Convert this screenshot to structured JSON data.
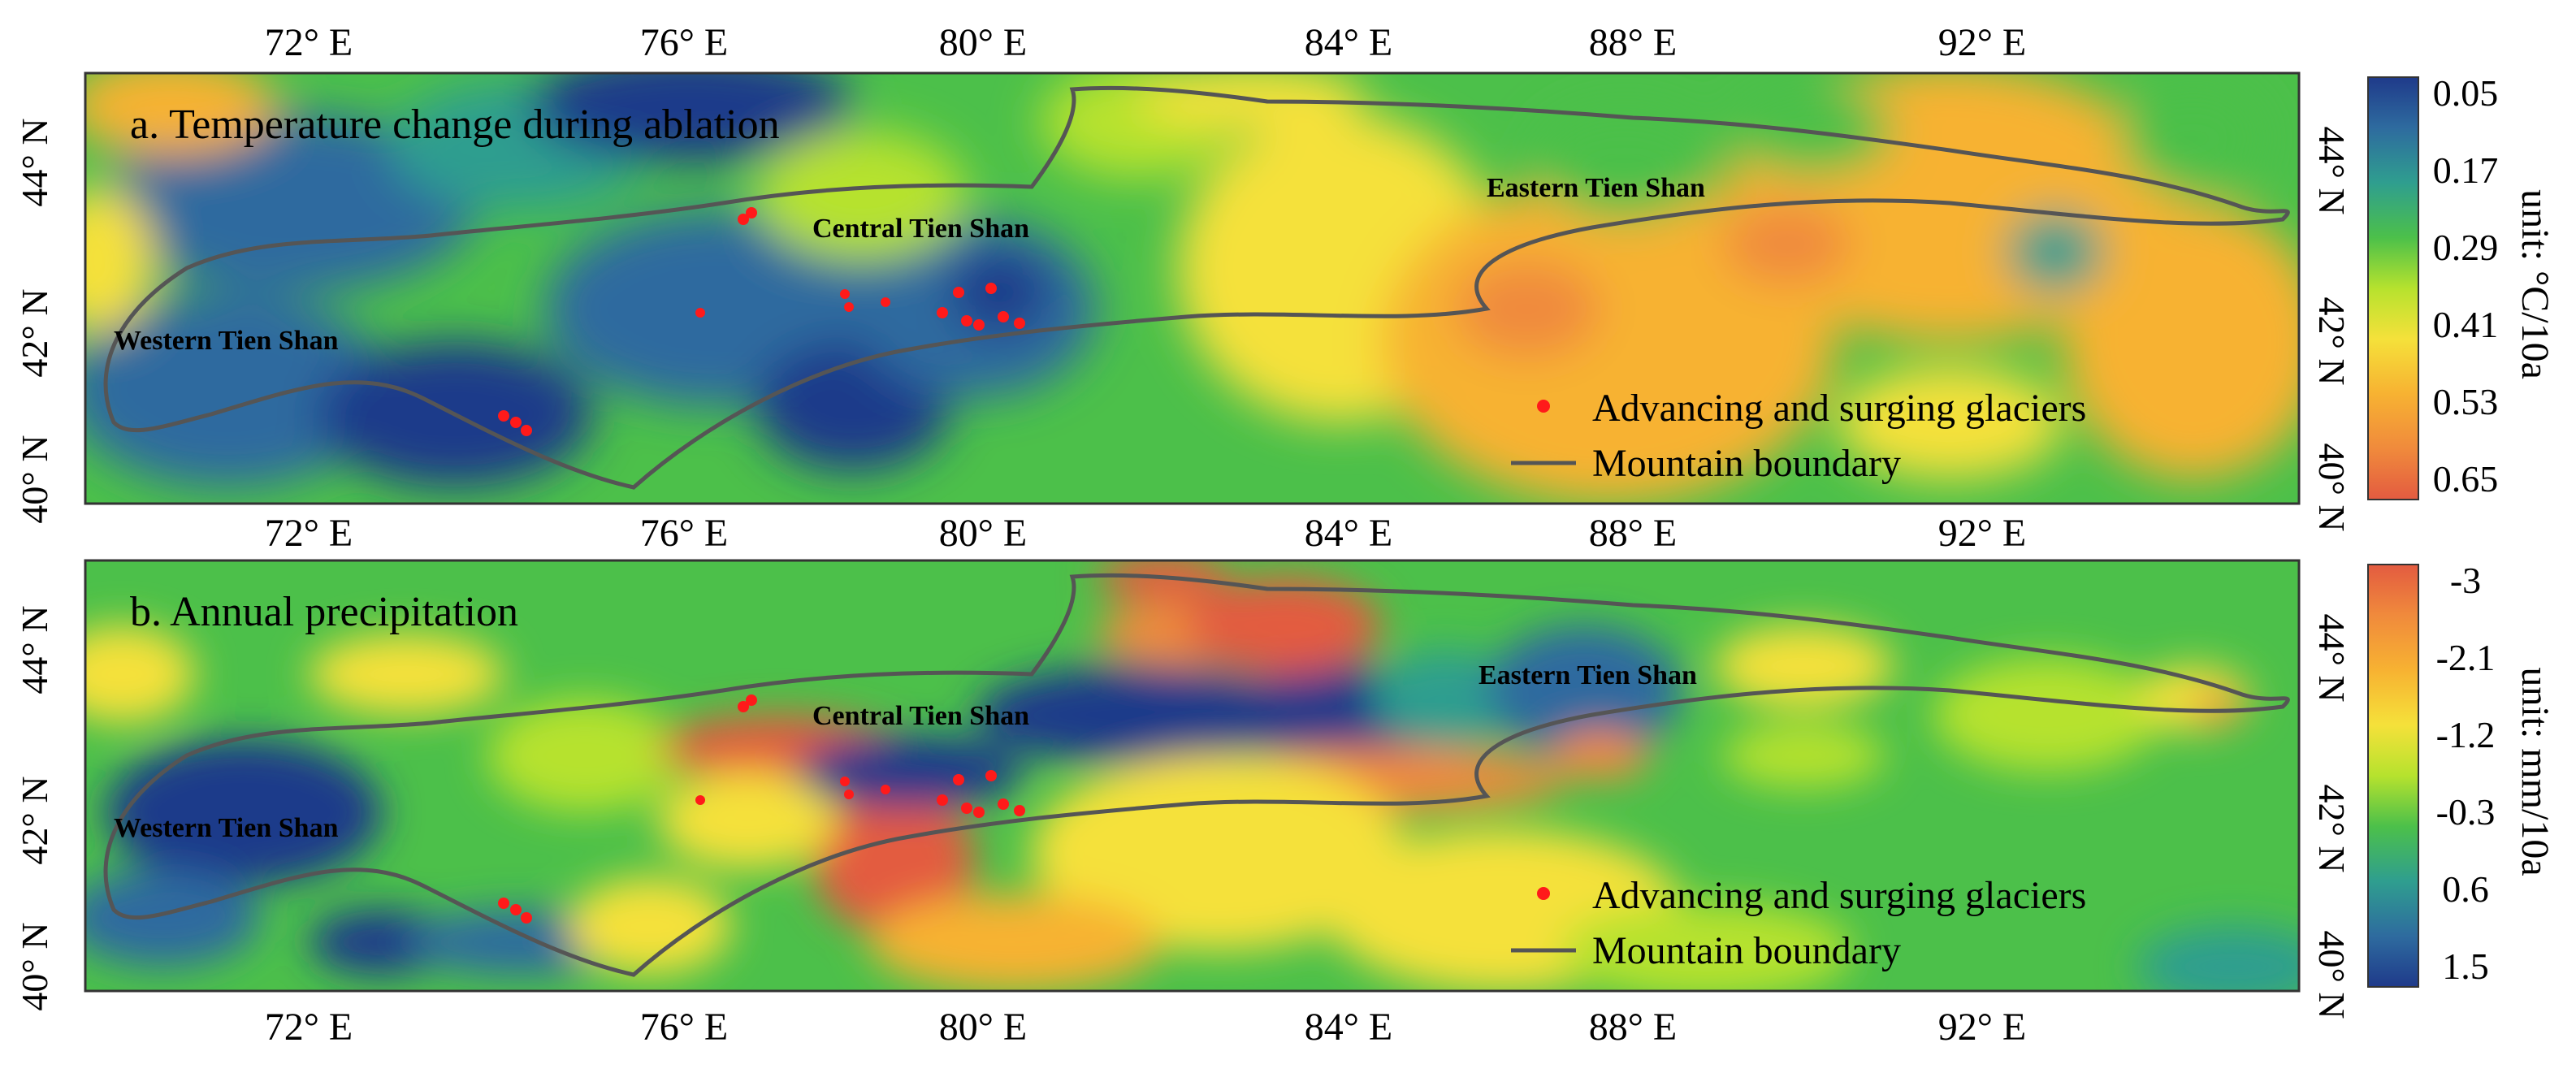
{
  "panels": [
    {
      "id": "a",
      "title": "a. Temperature change during ablation",
      "regions": [
        "Western Tien Shan",
        "Central Tien Shan",
        "Eastern Tien Shan"
      ],
      "legend": {
        "glaciers": "Advancing and surging glaciers",
        "boundary": "Mountain boundary"
      },
      "colorbar": {
        "unit": "unit: °C/10a",
        "labels": [
          "0.05",
          "0.17",
          "0.29",
          "0.41",
          "0.53",
          "0.65"
        ],
        "colors": [
          "#1f3a8a",
          "#2e6b9f",
          "#2f9e8f",
          "#4cc04a",
          "#b6e22e",
          "#f5e13a",
          "#f7b232",
          "#f08a3c",
          "#e35b40"
        ]
      }
    },
    {
      "id": "b",
      "title": "b. Annual precipitation",
      "regions": [
        "Western Tien Shan",
        "Central Tien Shan",
        "Eastern Tien Shan"
      ],
      "legend": {
        "glaciers": "Advancing and surging glaciers",
        "boundary": "Mountain boundary"
      },
      "colorbar": {
        "unit": "unit: mm/10a",
        "labels": [
          "-3",
          "-2.1",
          "-1.2",
          "-0.3",
          "0.6",
          "1.5"
        ],
        "colors": [
          "#e35b40",
          "#f08a3c",
          "#f7b232",
          "#f5e13a",
          "#b6e22e",
          "#4cc04a",
          "#2f9e8f",
          "#2e6b9f",
          "#1f3a8a"
        ]
      }
    }
  ],
  "axes": {
    "lon_labels": [
      "72° E",
      "76° E",
      "80° E",
      "84° E",
      "88° E",
      "92° E"
    ],
    "lat_labels": [
      "44° N",
      "42° N",
      "40° N"
    ]
  },
  "colors": {
    "boundary": "#555555",
    "glacier": "#ff1a1a"
  }
}
